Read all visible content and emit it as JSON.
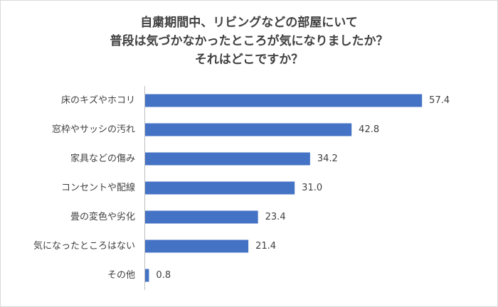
{
  "chart_data": {
    "type": "bar",
    "orientation": "horizontal",
    "title": [
      "自粛期間中、リビングなどの部屋にいて",
      "普段は気づかなかったところが気になりましたか？",
      "それはどこですか？"
    ],
    "categories": [
      "床のキズやホコリ",
      "窓枠やサッシの汚れ",
      "家具などの傷み",
      "コンセントや配線",
      "畳の変色や劣化",
      "気になったところはない",
      "その他"
    ],
    "values": [
      57.4,
      42.8,
      34.2,
      31.0,
      23.4,
      21.4,
      0.8
    ],
    "value_labels": [
      "57.4",
      "42.8",
      "34.2",
      "31.0",
      "23.4",
      "21.4",
      "0.8"
    ],
    "color": "#4472c4"
  }
}
